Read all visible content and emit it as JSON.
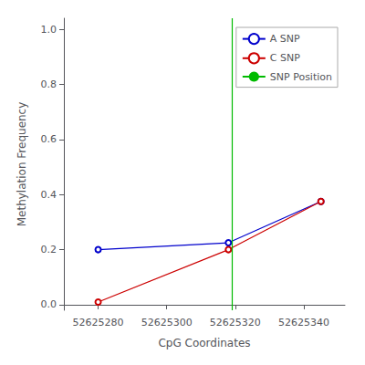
{
  "chart_data": {
    "type": "line",
    "xlabel": "CpG Coordinates",
    "ylabel": "Methylation Frequency",
    "x": [
      52625280,
      52625318,
      52625345
    ],
    "series": [
      {
        "name": "A SNP",
        "color": "#0000CC",
        "marker": "circle",
        "values": [
          0.2,
          0.225,
          0.375
        ]
      },
      {
        "name": "C SNP",
        "color": "#CC0000",
        "marker": "circle",
        "values": [
          0.01,
          0.2,
          0.375
        ]
      },
      {
        "name": "SNP Position",
        "type": "vline",
        "color": "#00BB00",
        "x": 52625319
      }
    ],
    "xlim": [
      52625270,
      52625352
    ],
    "ylim": [
      -0.02,
      1.04
    ],
    "xticks": [
      52625280,
      52625300,
      52625320,
      52625340
    ],
    "yticks": [
      {
        "value": 0.0,
        "label": "0.0"
      },
      0.2,
      0.4,
      0.6,
      0.8,
      {
        "value": 1.0,
        "label": "1.0"
      }
    ],
    "legend": "upper right",
    "grid": false
  }
}
